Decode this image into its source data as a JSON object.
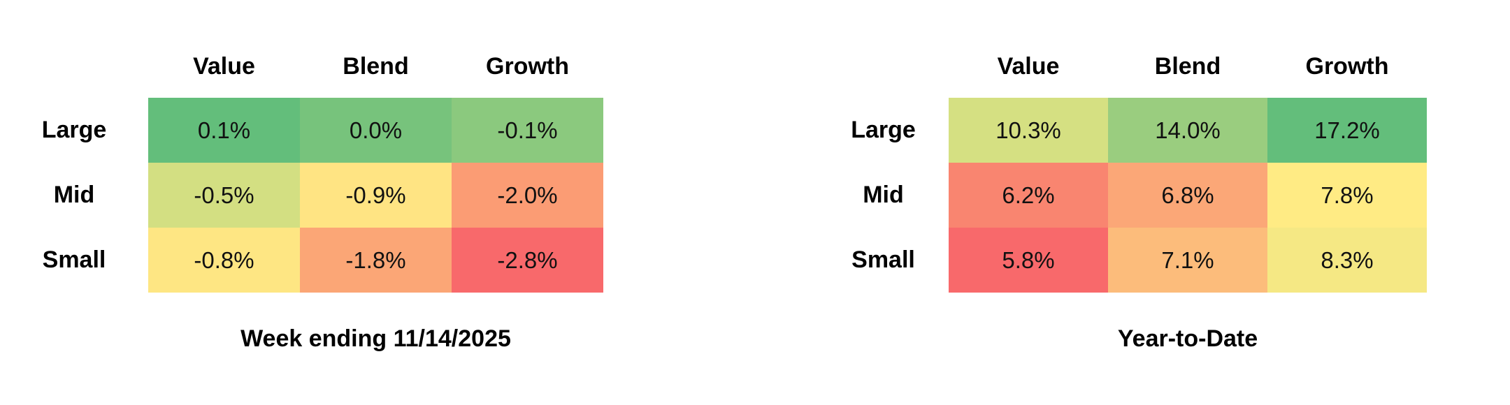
{
  "chart_data": [
    {
      "type": "heatmap",
      "title": "Week ending 11/14/2025",
      "columns": [
        "Value",
        "Blend",
        "Growth"
      ],
      "rows": [
        "Large",
        "Mid",
        "Small"
      ],
      "values": [
        [
          0.1,
          0.0,
          -0.1
        ],
        [
          -0.5,
          -0.9,
          -2.0
        ],
        [
          -0.8,
          -1.8,
          -2.8
        ]
      ],
      "labels": [
        [
          "0.1%",
          "0.0%",
          "-0.1%"
        ],
        [
          "-0.5%",
          "-0.9%",
          "-2.0%"
        ],
        [
          "-0.8%",
          "-1.8%",
          "-2.8%"
        ]
      ],
      "colors": [
        [
          "#63BE7B",
          "#77C37C",
          "#8BC97E"
        ],
        [
          "#D3DF82",
          "#FFE483",
          "#FB9C74"
        ],
        [
          "#FEE683",
          "#FBA676",
          "#F8696B"
        ]
      ]
    },
    {
      "type": "heatmap",
      "title": "Year-to-Date",
      "columns": [
        "Value",
        "Blend",
        "Growth"
      ],
      "rows": [
        "Large",
        "Mid",
        "Small"
      ],
      "values": [
        [
          10.3,
          14.0,
          17.2
        ],
        [
          6.2,
          6.8,
          7.8
        ],
        [
          5.8,
          7.1,
          8.3
        ]
      ],
      "labels": [
        [
          "10.3%",
          "14.0%",
          "17.2%"
        ],
        [
          "6.2%",
          "6.8%",
          "7.8%"
        ],
        [
          "5.8%",
          "7.1%",
          "8.3%"
        ]
      ],
      "colors": [
        [
          "#D5E082",
          "#9ACD7F",
          "#63BE7B"
        ],
        [
          "#F98570",
          "#FBA777",
          "#FFEB84"
        ],
        [
          "#F8696B",
          "#FCBC7B",
          "#F5E884"
        ]
      ]
    }
  ]
}
